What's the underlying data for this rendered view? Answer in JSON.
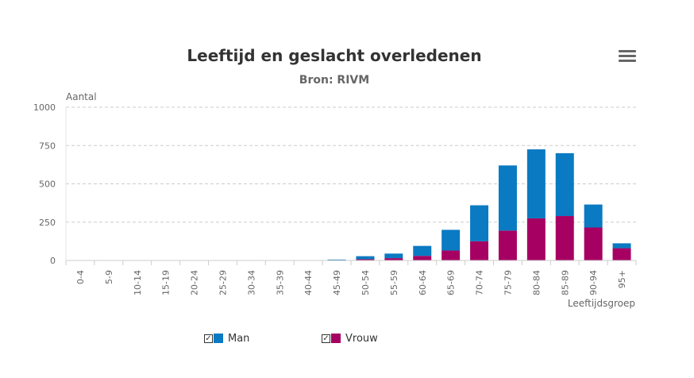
{
  "chart_data": {
    "type": "bar",
    "stacked": true,
    "title": "Leeftijd en geslacht overledenen",
    "subtitle": "Bron: RIVM",
    "ylabel": "Aantal",
    "xlabel": "Leeftijdsgroep",
    "ylim": [
      0,
      1000
    ],
    "yticks": [
      0,
      250,
      500,
      750,
      1000
    ],
    "grid": true,
    "legend_position": "bottom",
    "categories": [
      "0-4",
      "5-9",
      "10-14",
      "15-19",
      "20-24",
      "25-29",
      "30-34",
      "35-39",
      "40-44",
      "45-49",
      "50-54",
      "55-59",
      "60-64",
      "65-69",
      "70-74",
      "75-79",
      "80-84",
      "85-89",
      "90-94",
      "95+"
    ],
    "series": [
      {
        "name": "Man",
        "color": "#0a7ac2",
        "values": [
          0,
          0,
          0,
          0,
          0,
          0,
          0,
          0,
          0,
          4,
          20,
          30,
          65,
          135,
          235,
          425,
          450,
          410,
          150,
          32
        ]
      },
      {
        "name": "Vrouw",
        "color": "#a60062",
        "values": [
          0,
          0,
          0,
          0,
          0,
          0,
          0,
          0,
          0,
          2,
          8,
          15,
          30,
          65,
          125,
          195,
          275,
          290,
          215,
          80
        ]
      }
    ]
  },
  "menu": {
    "icon": "hamburger-menu-icon"
  }
}
